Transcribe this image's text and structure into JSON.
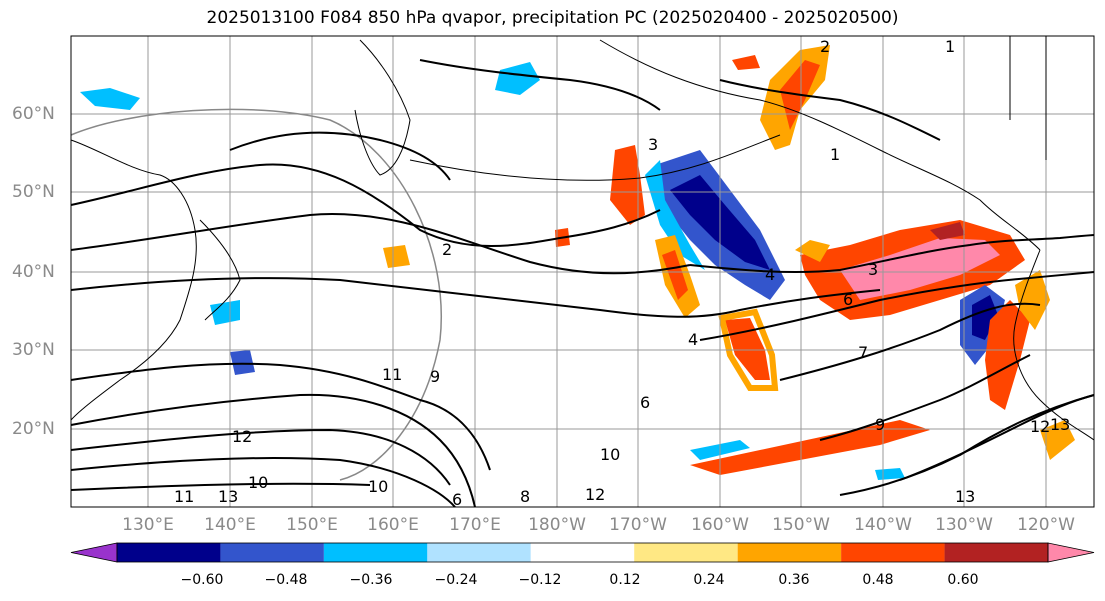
{
  "title": "2025013100 F084 850 hPa qvapor, precipitation PC (2025020400 - 2025020500)",
  "map": {
    "lat_labels": [
      "60°N",
      "50°N",
      "40°N",
      "30°N",
      "20°N"
    ],
    "lon_labels": [
      "130°E",
      "140°E",
      "150°E",
      "160°E",
      "170°E",
      "180°W",
      "170°W",
      "160°W",
      "150°W",
      "140°W",
      "130°W",
      "120°W"
    ],
    "contour_labels": [
      "2",
      "2",
      "4",
      "3",
      "3",
      "6",
      "4",
      "1",
      "7",
      "6",
      "11",
      "9",
      "12",
      "10",
      "10",
      "13",
      "13",
      "11",
      "6",
      "8",
      "12",
      "10",
      "9",
      "13",
      "12",
      "1"
    ],
    "colors": {
      "purple": "#9933cc",
      "navy": "#00008b",
      "royal_blue": "#3355cc",
      "deep_sky_blue": "#00bfff",
      "light_blue": "#b0e2ff",
      "white": "#ffffff",
      "light_yellow": "#ffe884",
      "orange": "#ffa500",
      "orange_red": "#ff4500",
      "dark_red": "#b22222",
      "pink": "#ff88aa",
      "grid": "#999999",
      "coast": "#000000"
    }
  },
  "colorbar": {
    "ticks": [
      "−0.60",
      "−0.48",
      "−0.36",
      "−0.24",
      "−0.12",
      "0.12",
      "0.24",
      "0.36",
      "0.48",
      "0.60"
    ],
    "bins": [
      {
        "color": "#9933cc"
      },
      {
        "color": "#00008b"
      },
      {
        "color": "#3355cc"
      },
      {
        "color": "#00bfff"
      },
      {
        "color": "#b0e2ff"
      },
      {
        "color": "#ffffff"
      },
      {
        "color": "#ffe884"
      },
      {
        "color": "#ffa500"
      },
      {
        "color": "#ff4500"
      },
      {
        "color": "#b22222"
      },
      {
        "color": "#ff88aa"
      }
    ]
  }
}
